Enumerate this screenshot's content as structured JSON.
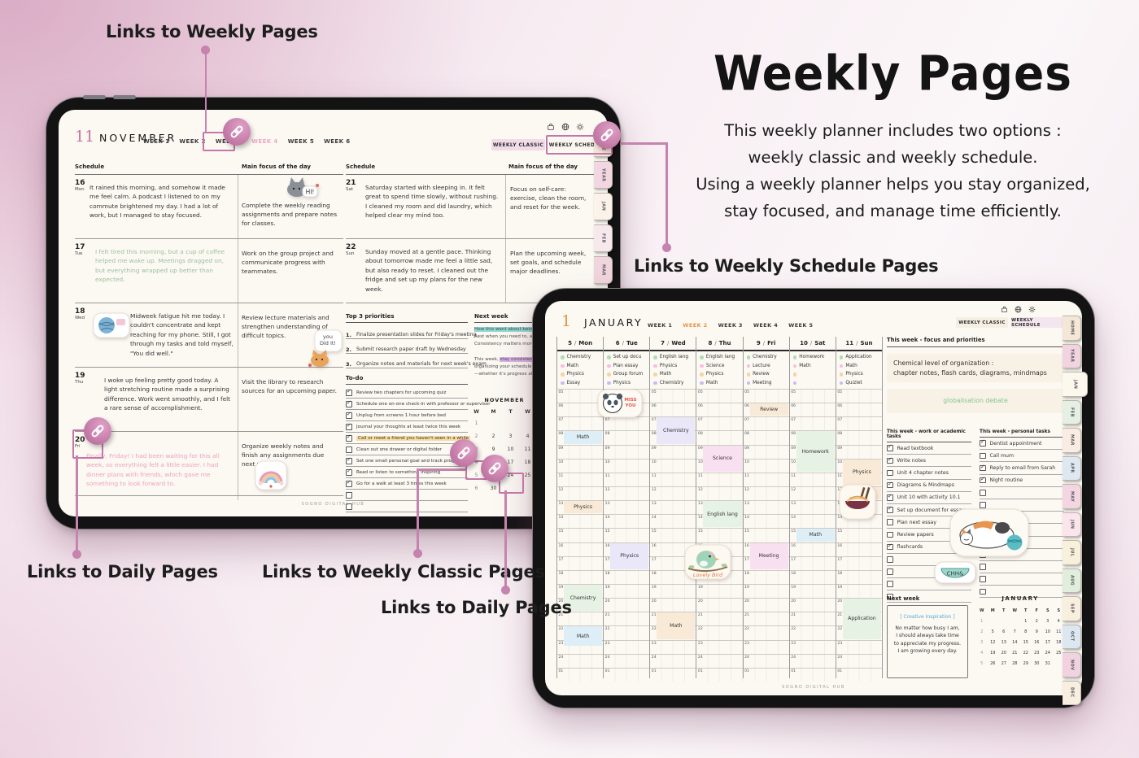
{
  "annotations": {
    "weekly_pages": "Links to Weekly Pages",
    "weekly_schedule_pages": "Links to Weekly Schedule Pages",
    "daily_pages_left": "Links to Daily Pages",
    "weekly_classic_pages": "Links to Weekly Classic Pages",
    "daily_pages_right": "Links to Daily Pages"
  },
  "title_block": {
    "title": "Weekly Pages",
    "lines": [
      "This weekly planner includes two options :",
      "weekly classic and weekly schedule.",
      "Using a weekly planner helps you stay organized,",
      "stay focused, and manage time efficiently."
    ]
  },
  "colors": {
    "accent_pink": "#c576a7",
    "active_week_nov": "#eda4c6",
    "active_week_jan": "#e8923f"
  },
  "ipad1": {
    "month_num": "11",
    "month_name": "NOVEMBER",
    "weeks": [
      "WEEK 1",
      "WEEK 2",
      "WEEK 3",
      "WEEK 4",
      "WEEK 5",
      "WEEK 6"
    ],
    "active_week": "WEEK 4",
    "btn_classic": "WEEKLY CLASSIC",
    "btn_schedule": "WEEKLY SCHEDULE",
    "col_schedule": "Schedule",
    "col_focus": "Main focus of the day",
    "days": [
      {
        "date": "16",
        "dow": "Mon",
        "ink": "dark",
        "entry": "It rained this morning, and somehow it made me feel calm. A podcast I listened to on my commute brightened my day. I had a lot of work, but I managed to stay focused.",
        "focus": "Complete the weekly reading assignments and prepare notes for classes."
      },
      {
        "date": "17",
        "dow": "Tue",
        "ink": "green",
        "entry": "I felt tired this morning, but a cup of coffee helped me wake up. Meetings dragged on, but everything wrapped up better than expected.",
        "focus": "Work on the group project and communicate progress with teammates."
      },
      {
        "date": "18",
        "dow": "Wed",
        "ink": "dark",
        "entry": "Midweek fatigue hit me today. I couldn't concentrate and kept reaching for my phone. Still, I got through my tasks and told myself, \"You did well.\"",
        "focus": "Review lecture materials and strengthen understanding of difficult topics."
      },
      {
        "date": "19",
        "dow": "Thu",
        "ink": "dark",
        "entry": "I woke up feeling pretty good today. A light stretching routine made a surprising difference. Work went smoothly, and I felt a rare sense of accomplishment.",
        "focus": "Visit the library to research sources for an upcoming paper."
      },
      {
        "date": "20",
        "dow": "Fri",
        "ink": "pink",
        "entry": "Finally, Friday! I had been waiting for this all week, so everything felt a little easier. I had dinner plans with friends, which gave me something to look forward to.",
        "focus": "Organize weekly notes and finish any assignments due next week"
      }
    ],
    "weekend": [
      {
        "date": "21",
        "dow": "Sat",
        "ink": "dark",
        "entry": "Saturday started with sleeping in. It felt great to spend time slowly, without rushing. I cleaned my room and did laundry, which helped clear my mind too.",
        "focus": "Focus on self-care: exercise, clean the room, and reset for the week."
      },
      {
        "date": "22",
        "dow": "Sun",
        "ink": "dark",
        "entry": "Sunday moved at a gentle pace. Thinking about tomorrow made me feel a little sad, but also ready to reset. I cleaned out the fridge and set up my plans for the new week.",
        "focus": "Plan the upcoming week, set goals, and schedule major deadlines."
      }
    ],
    "priorities_title": "Top 3 priorities",
    "priorities": [
      "Finalize presentation slides for Friday's meeting",
      "Submit research paper draft by Wednesday",
      "Organize notes and materials for next week's exam"
    ],
    "todo_title": "To-do",
    "todo": [
      {
        "label": "Review two chapters for upcoming quiz",
        "checked": true
      },
      {
        "label": "Schedule one on-one check-in with professor or supervisor",
        "checked": true
      },
      {
        "label": "Unplug from screens 1 hour before bed",
        "checked": true
      },
      {
        "label": "Journal your thoughts at least twice this week",
        "checked": true
      },
      {
        "label": "Call or meet a friend you haven't seen in a while",
        "checked": true,
        "highlight": true
      },
      {
        "label": "Clean out one drawer or digital folder",
        "checked": false
      },
      {
        "label": "Set one small personal goal and track progress",
        "checked": true
      },
      {
        "label": "Read or listen to something inspiring",
        "checked": true
      },
      {
        "label": "Go for a walk at least 3 times this week",
        "checked": true
      },
      {
        "label": "",
        "checked": false
      },
      {
        "label": "",
        "checked": false
      }
    ],
    "nextweek_title": "Next week",
    "nextweek_lines": [
      [
        {
          "t": "How this went about being h…",
          "hl": "teal"
        }
      ],
      [
        {
          "t": "Rest when you need to, and take…"
        }
      ],
      [
        {
          "t": "Consistency matters more than…"
        }
      ],
      [
        {
          "t": ""
        }
      ],
      [
        {
          "t": "This week, "
        },
        {
          "t": "stay consistent with…",
          "hl": "purple"
        }
      ],
      [
        {
          "t": "organizing your schedule priori…"
        }
      ],
      [
        {
          "t": "—whether it's progress at work,"
        }
      ]
    ],
    "minical": {
      "title": "NOVEMBER",
      "cols": [
        "W",
        "M",
        "T",
        "W"
      ],
      "rows": [
        [
          "1",
          "",
          "",
          ""
        ],
        [
          "2",
          "2",
          "3",
          "4"
        ],
        [
          "3",
          "9",
          "10",
          "11"
        ],
        [
          "4",
          "16",
          "17",
          "18"
        ],
        [
          "5",
          "23",
          "24",
          "25"
        ],
        [
          "6",
          "30",
          "",
          ""
        ]
      ]
    },
    "footer": "SOGNO DIGITAL HUB",
    "side_tabs": [
      {
        "label": "HOME",
        "color": "#f3e4d7"
      },
      {
        "label": "YEAR",
        "color": "#f2d6e2"
      },
      {
        "label": "JAN",
        "color": "#fbf3ea"
      },
      {
        "label": "FEB",
        "color": "#f7e8ee"
      },
      {
        "label": "MAR",
        "color": "#f0d5de"
      },
      {
        "label": "APR",
        "color": "#dfe7ee"
      }
    ]
  },
  "ipad2": {
    "month_num": "1",
    "month_name": "JANUARY",
    "weeks": [
      "WEEK 1",
      "WEEK 2",
      "WEEK 3",
      "WEEK 4",
      "WEEK 5"
    ],
    "active_week": "WEEK 2",
    "btn_classic": "WEEKLY CLASSIC",
    "btn_schedule": "WEEKLY SCHEDULE",
    "hours": [
      "05",
      "06",
      "07",
      "08",
      "09",
      "10",
      "11",
      "12",
      "13",
      "14",
      "15",
      "16",
      "17",
      "18",
      "19",
      "20",
      "21",
      "22",
      "23",
      "24",
      "01"
    ],
    "days": [
      {
        "date": "5",
        "dow": "Mon",
        "legend": [
          {
            "c": "green",
            "label": "Chemistry"
          },
          {
            "c": "pink",
            "label": "Math"
          },
          {
            "c": "peach",
            "label": "Physics"
          },
          {
            "c": "purple",
            "label": "Essay"
          }
        ],
        "blocks": [
          {
            "label": "Math",
            "start": "08",
            "dur": 1,
            "c": "blue"
          },
          {
            "label": "Physics",
            "start": "13",
            "dur": 1,
            "c": "peach"
          },
          {
            "label": "Chemistry",
            "start": "19",
            "dur": 2,
            "c": "green"
          },
          {
            "label": "Math",
            "start": "22",
            "dur": 1.5,
            "c": "blue"
          }
        ]
      },
      {
        "date": "6",
        "dow": "Tue",
        "legend": [
          {
            "c": "green",
            "label": "Set up docu"
          },
          {
            "c": "pink",
            "label": "Plan essay"
          },
          {
            "c": "peach",
            "label": "Group forum"
          },
          {
            "c": "purple",
            "label": "Physics"
          }
        ],
        "blocks": [
          {
            "label": "Physics",
            "start": "16",
            "dur": 2,
            "c": "purple"
          }
        ]
      },
      {
        "date": "7",
        "dow": "Wed",
        "legend": [
          {
            "c": "green",
            "label": "English lang"
          },
          {
            "c": "pink",
            "label": "Physics"
          },
          {
            "c": "peach",
            "label": "Math"
          },
          {
            "c": "purple",
            "label": "Chemistry"
          }
        ],
        "blocks": [
          {
            "label": "Chemistry",
            "start": "07",
            "dur": 2,
            "c": "purple"
          },
          {
            "label": "Math",
            "start": "21",
            "dur": 2,
            "c": "peach"
          }
        ]
      },
      {
        "date": "8",
        "dow": "Thu",
        "legend": [
          {
            "c": "green",
            "label": "English lang"
          },
          {
            "c": "pink",
            "label": "Science"
          },
          {
            "c": "peach",
            "label": "Physics"
          },
          {
            "c": "purple",
            "label": "Math"
          }
        ],
        "blocks": [
          {
            "label": "Science",
            "start": "09",
            "dur": 2,
            "c": "pink"
          },
          {
            "label": "English lang",
            "start": "13",
            "dur": 2,
            "c": "green"
          }
        ]
      },
      {
        "date": "9",
        "dow": "Fri",
        "legend": [
          {
            "c": "green",
            "label": "Chemistry"
          },
          {
            "c": "pink",
            "label": "Lecture"
          },
          {
            "c": "peach",
            "label": "Review"
          },
          {
            "c": "purple",
            "label": "Meeting"
          }
        ],
        "blocks": [
          {
            "label": "Review",
            "start": "06",
            "dur": 1,
            "c": "peach"
          },
          {
            "label": "Meeting",
            "start": "16",
            "dur": 2,
            "c": "pink"
          }
        ]
      },
      {
        "date": "10",
        "dow": "Sat",
        "legend": [
          {
            "c": "green",
            "label": "Homework"
          },
          {
            "c": "pink",
            "label": "Math"
          },
          {
            "c": "peach",
            "label": ""
          },
          {
            "c": "purple",
            "label": ""
          }
        ],
        "blocks": [
          {
            "label": "Homework",
            "start": "08",
            "dur": 3,
            "c": "green"
          },
          {
            "label": "Math",
            "start": "15",
            "dur": 1,
            "c": "blue"
          }
        ]
      },
      {
        "date": "11",
        "dow": "Sun",
        "legend": [
          {
            "c": "green",
            "label": "Application"
          },
          {
            "c": "pink",
            "label": "Math"
          },
          {
            "c": "peach",
            "label": "Physics"
          },
          {
            "c": "purple",
            "label": "Quizlet"
          }
        ],
        "blocks": [
          {
            "label": "Physics",
            "start": "10",
            "dur": 2,
            "c": "peach"
          },
          {
            "label": "Quizlet",
            "start": "12",
            "dur": 1,
            "c": "peach"
          },
          {
            "label": "Application",
            "start": "20",
            "dur": 3,
            "c": "green"
          }
        ]
      }
    ],
    "focus_title": "This week - focus and priorities",
    "note1_line1": "Chemical level of organization :",
    "note1_line2": "chapter notes, flash cards, diagrams, mindmaps",
    "note2": "globalisation debate",
    "tasks_left_title": "This week - work or academic tasks",
    "tasks_left": [
      {
        "label": "Read textbook",
        "checked": true
      },
      {
        "label": "Write notes",
        "checked": true
      },
      {
        "label": "Unit 4 chapter notes",
        "checked": false
      },
      {
        "label": "Diagrams & Mindmaps",
        "checked": true
      },
      {
        "label": "Unit 10 with activity 10.1",
        "checked": true
      },
      {
        "label": "Set up document for essay",
        "checked": true
      },
      {
        "label": "Plan next essay",
        "checked": false
      },
      {
        "label": "Review papers",
        "checked": false
      },
      {
        "label": "flashcards",
        "checked": true
      },
      {
        "label": "",
        "checked": false
      },
      {
        "label": "",
        "checked": false
      },
      {
        "label": "",
        "checked": false
      },
      {
        "label": "",
        "checked": false
      }
    ],
    "tasks_right_title": "This week - personal tasks",
    "tasks_right": [
      {
        "label": "Dentist appointment",
        "checked": true
      },
      {
        "label": "Call mum",
        "checked": false
      },
      {
        "label": "Reply to email from Sarah",
        "checked": true
      },
      {
        "label": "Night routine",
        "checked": true
      },
      {
        "label": "",
        "checked": false
      },
      {
        "label": "",
        "checked": false
      },
      {
        "label": "",
        "checked": false
      },
      {
        "label": "",
        "checked": false
      },
      {
        "label": "",
        "checked": false
      },
      {
        "label": "",
        "checked": false
      },
      {
        "label": "",
        "checked": false
      },
      {
        "label": "",
        "checked": false
      },
      {
        "label": "",
        "checked": false
      }
    ],
    "nextweek_title": "Next week",
    "quote_tag": "[ Creative Inspiration ]",
    "quote_lines": [
      "No matter how busy I am,",
      "I should always take time",
      "to appreciate my progress.",
      "I am growing every day."
    ],
    "minical": {
      "title": "JANUARY",
      "cols": [
        "W",
        "M",
        "T",
        "W",
        "T",
        "F",
        "S",
        "S"
      ],
      "rows": [
        [
          "1",
          "",
          "",
          "",
          "1",
          "2",
          "3",
          "4"
        ],
        [
          "2",
          "5",
          "6",
          "7",
          "8",
          "9",
          "10",
          "11"
        ],
        [
          "3",
          "12",
          "13",
          "14",
          "15",
          "16",
          "17",
          "18"
        ],
        [
          "4",
          "19",
          "20",
          "21",
          "22",
          "23",
          "24",
          "25"
        ],
        [
          "5",
          "26",
          "27",
          "28",
          "29",
          "30",
          "31",
          ""
        ]
      ]
    },
    "footer": "SOGNO DIGITAL HUB",
    "side_tabs": [
      {
        "label": "HOME",
        "color": "#f5e7d8"
      },
      {
        "label": "YEAR",
        "color": "#f2d4e0"
      },
      {
        "label": "JAN",
        "color": "#fdf8ee"
      },
      {
        "label": "FEB",
        "color": "#e6efe3"
      },
      {
        "label": "MAR",
        "color": "#f9ece2"
      },
      {
        "label": "APR",
        "color": "#dde8f0"
      },
      {
        "label": "MAY",
        "color": "#f4d6e2"
      },
      {
        "label": "JUN",
        "color": "#fbe4ec"
      },
      {
        "label": "JUL",
        "color": "#f7f0da"
      },
      {
        "label": "AUG",
        "color": "#e2eedd"
      },
      {
        "label": "SEP",
        "color": "#f8efdf"
      },
      {
        "label": "OCT",
        "color": "#dce7f2"
      },
      {
        "label": "NOV",
        "color": "#f1d2e0"
      },
      {
        "label": "DEC",
        "color": "#f8efe0"
      }
    ]
  },
  "stickers": {
    "hi": "HI!",
    "you_did_1": "you",
    "you_did_2": "Did It!",
    "miss_you_1": "MISS",
    "miss_you_2": "YOU",
    "lovely_bird": "Lovely Bird",
    "bowl": "CHH&"
  }
}
